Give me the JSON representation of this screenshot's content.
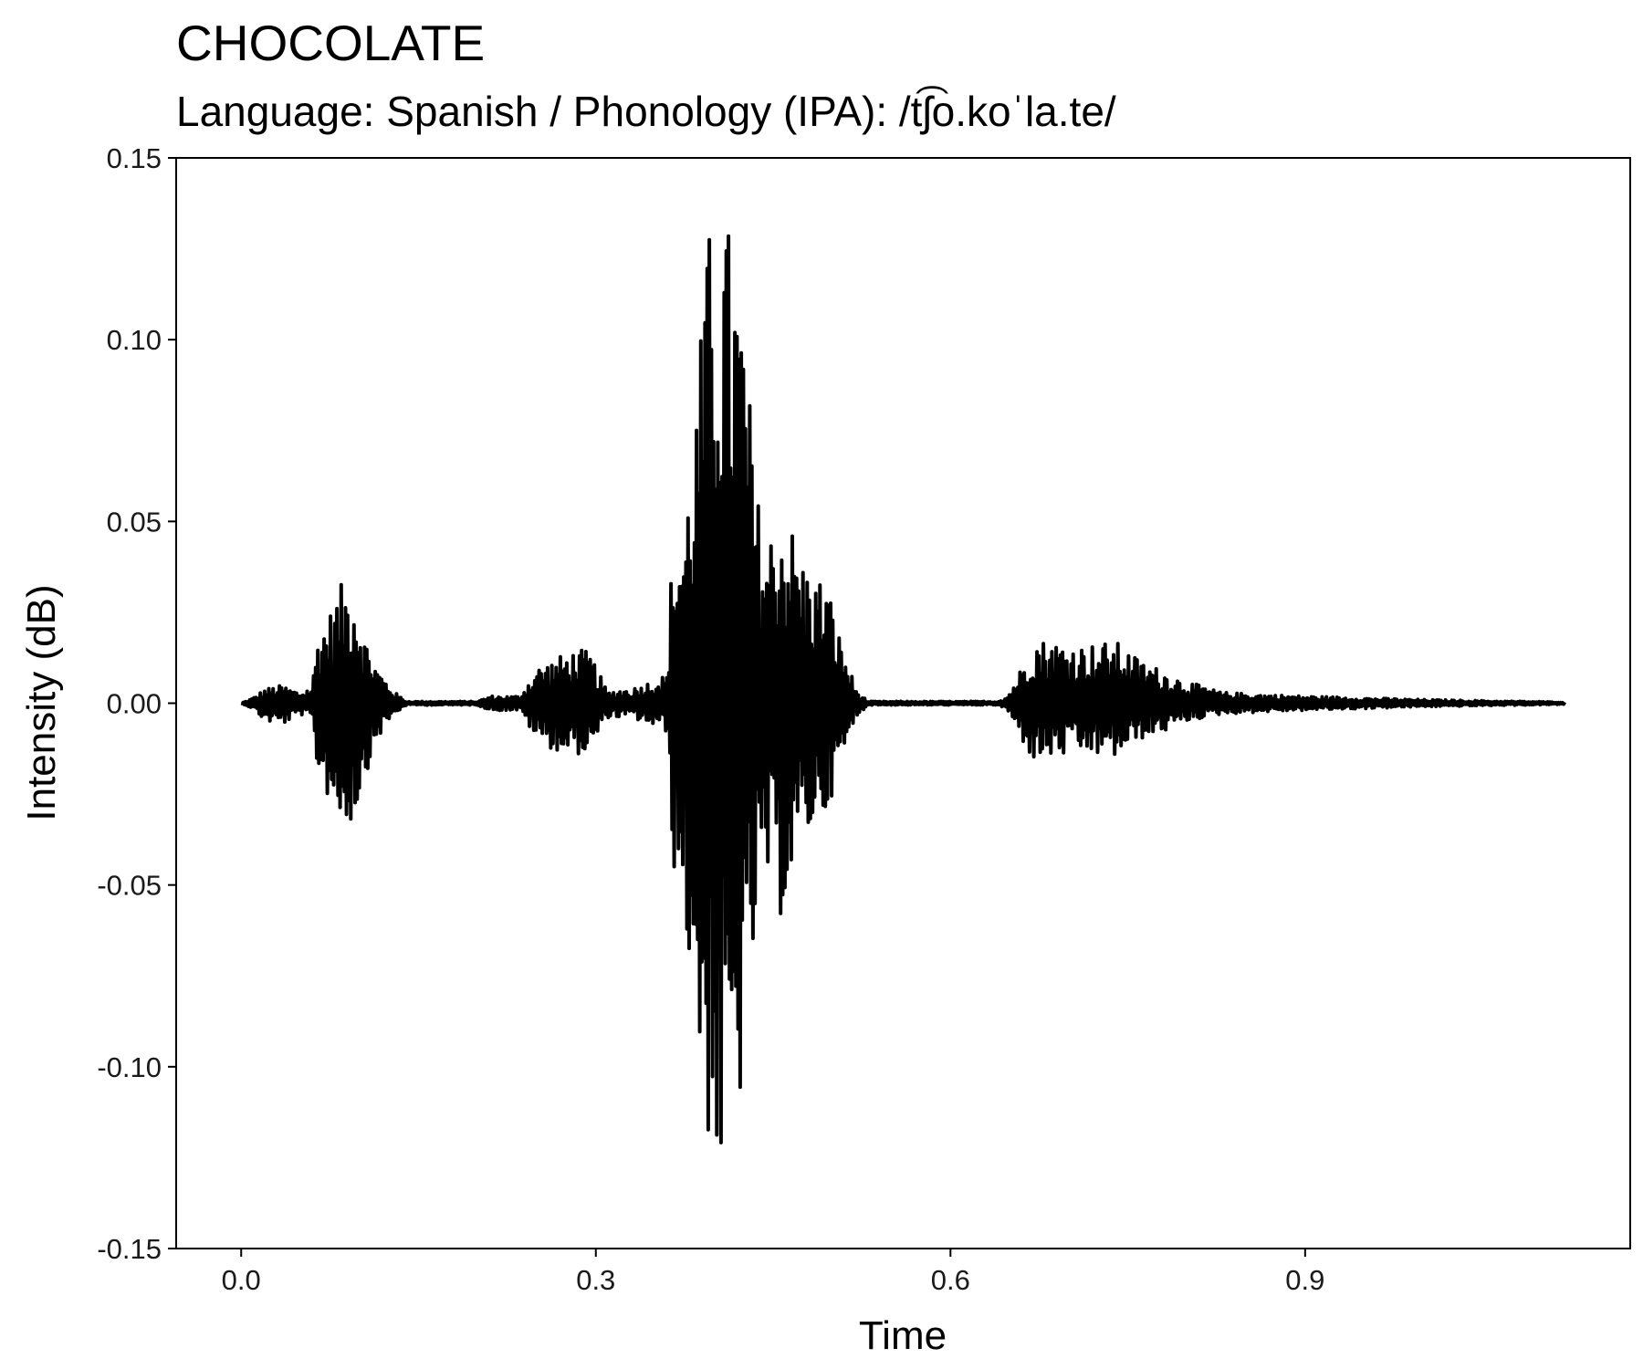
{
  "chart_data": {
    "type": "line",
    "title": "CHOCOLATE",
    "subtitle": "Language: Spanish / Phonology (IPA): /tʃ͡o.koˈla.te/",
    "xlabel": "Time",
    "ylabel": "Intensity (dB)",
    "xlim": [
      -0.055,
      1.175
    ],
    "ylim": [
      -0.15,
      0.15
    ],
    "x_ticks": [
      "0.0",
      "0.3",
      "0.6",
      "0.9"
    ],
    "x_tick_values": [
      0.0,
      0.3,
      0.6,
      0.9
    ],
    "y_ticks": [
      "0.15",
      "0.10",
      "0.05",
      "0.00",
      "-0.05",
      "-0.10",
      "-0.15"
    ],
    "y_tick_values": [
      0.15,
      0.1,
      0.05,
      0.0,
      -0.05,
      -0.1,
      -0.15
    ],
    "grid": false,
    "line_color": "#000000",
    "duration": 1.12,
    "envelope": {
      "x": [
        0.0,
        0.01,
        0.02,
        0.035,
        0.05,
        0.06,
        0.065,
        0.075,
        0.085,
        0.095,
        0.105,
        0.115,
        0.13,
        0.14,
        0.2,
        0.21,
        0.235,
        0.25,
        0.27,
        0.285,
        0.295,
        0.31,
        0.32,
        0.33,
        0.36,
        0.365,
        0.375,
        0.385,
        0.395,
        0.405,
        0.415,
        0.425,
        0.435,
        0.445,
        0.455,
        0.465,
        0.475,
        0.485,
        0.495,
        0.505,
        0.52,
        0.53,
        0.64,
        0.648,
        0.66,
        0.67,
        0.69,
        0.71,
        0.74,
        0.76,
        0.78,
        0.8,
        0.83,
        0.86,
        0.9,
        0.95,
        1.0,
        1.05,
        1.12
      ],
      "pos": [
        0.0,
        0.0015,
        0.004,
        0.005,
        0.003,
        0.005,
        0.02,
        0.025,
        0.033,
        0.034,
        0.018,
        0.01,
        0.003,
        0.0005,
        0.0005,
        0.002,
        0.002,
        0.01,
        0.013,
        0.015,
        0.014,
        0.003,
        0.004,
        0.004,
        0.008,
        0.045,
        0.05,
        0.085,
        0.13,
        0.137,
        0.13,
        0.11,
        0.06,
        0.045,
        0.055,
        0.05,
        0.04,
        0.035,
        0.035,
        0.02,
        0.004,
        0.0005,
        0.0005,
        0.002,
        0.01,
        0.018,
        0.017,
        0.016,
        0.017,
        0.012,
        0.009,
        0.006,
        0.003,
        0.0025,
        0.002,
        0.0015,
        0.001,
        0.0007,
        0.0003
      ],
      "neg": [
        0.0,
        0.0015,
        0.005,
        0.006,
        0.003,
        0.005,
        0.02,
        0.027,
        0.034,
        0.033,
        0.02,
        0.01,
        0.003,
        0.0005,
        0.0005,
        0.002,
        0.002,
        0.01,
        0.014,
        0.014,
        0.014,
        0.004,
        0.004,
        0.004,
        0.008,
        0.044,
        0.06,
        0.095,
        0.12,
        0.137,
        0.125,
        0.105,
        0.065,
        0.05,
        0.06,
        0.05,
        0.04,
        0.033,
        0.03,
        0.02,
        0.004,
        0.0005,
        0.0005,
        0.002,
        0.01,
        0.016,
        0.015,
        0.014,
        0.015,
        0.01,
        0.008,
        0.005,
        0.003,
        0.0025,
        0.002,
        0.0015,
        0.001,
        0.0007,
        0.0003
      ]
    }
  }
}
